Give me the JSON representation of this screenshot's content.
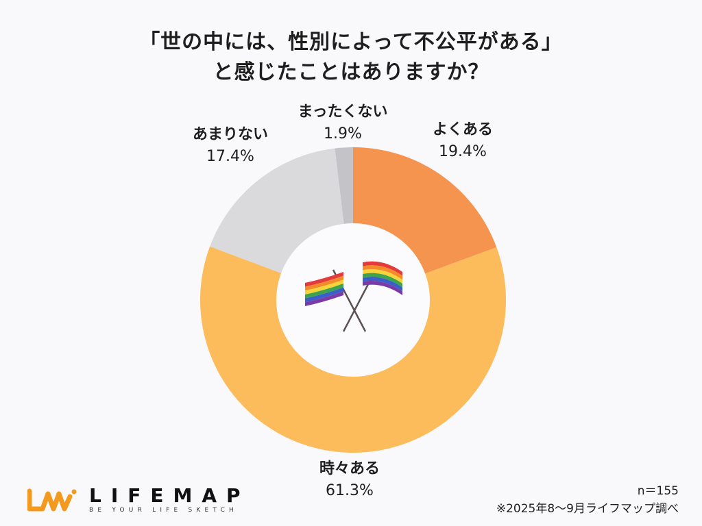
{
  "title": {
    "line1": "「世の中には、性別によって不公平がある」",
    "line2": "と感じたことはありますか？"
  },
  "chart_data": {
    "type": "pie",
    "subtype": "donut",
    "title": "「世の中には、性別によって不公平がある」と感じたことはありますか？",
    "start_angle": "12 o'clock, clockwise",
    "categories": [
      "よくある",
      "時々ある",
      "あまりない",
      "まったくない"
    ],
    "values": [
      19.4,
      61.3,
      17.4,
      1.9
    ],
    "unit": "%",
    "colors": [
      "#f5944f",
      "#fdbc5c",
      "#dadadd",
      "#c3c3c8"
    ],
    "center_icon": "crossed-rainbow-flags-icon",
    "sample_size": "n＝155"
  },
  "labels": [
    {
      "name": "よくある",
      "pct": "19.4%"
    },
    {
      "name": "時々ある",
      "pct": "61.3%"
    },
    {
      "name": "あまりない",
      "pct": "17.4%"
    },
    {
      "name": "まったくない",
      "pct": "1.9%"
    }
  ],
  "footer": {
    "sample": "n＝155",
    "source": "※2025年8〜9月ライフマップ調べ"
  },
  "logo": {
    "name": "LIFEMAP",
    "tagline": "BE YOUR LIFE SKETCH",
    "color": "#f39a1e"
  }
}
